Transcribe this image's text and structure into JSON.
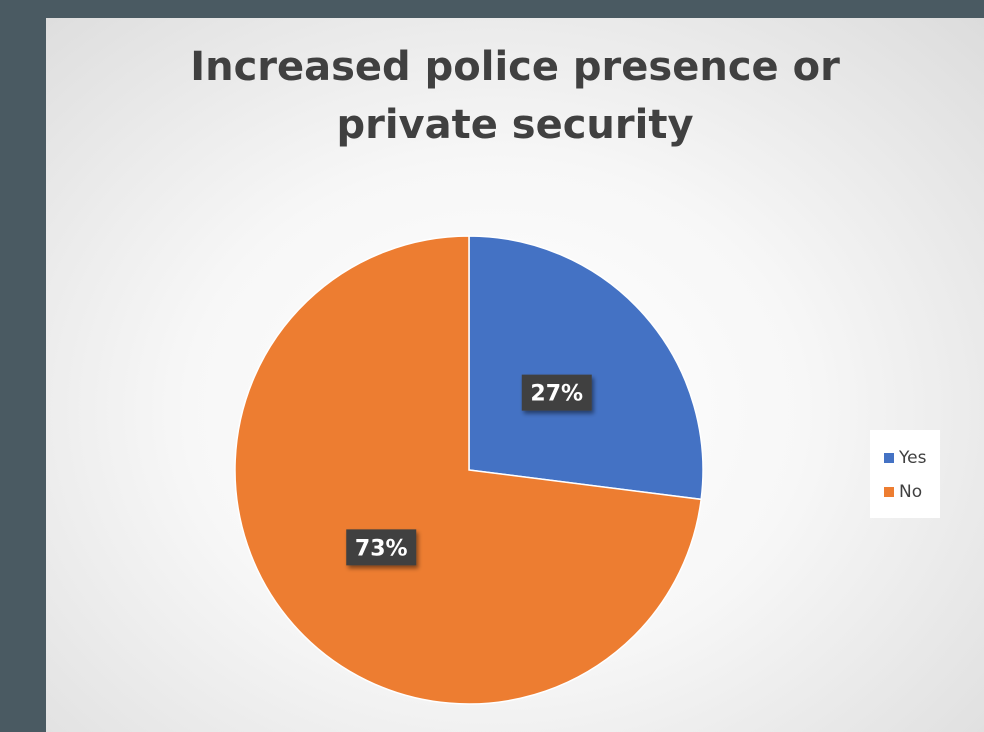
{
  "chart_data": {
    "type": "pie",
    "title": "Increased police presence or private security",
    "categories": [
      "Yes",
      "No"
    ],
    "values": [
      27,
      73
    ],
    "data_labels": [
      "27%",
      "73%"
    ],
    "colors": [
      "#4472c4",
      "#ed7d31"
    ],
    "legend_placement": "right"
  }
}
